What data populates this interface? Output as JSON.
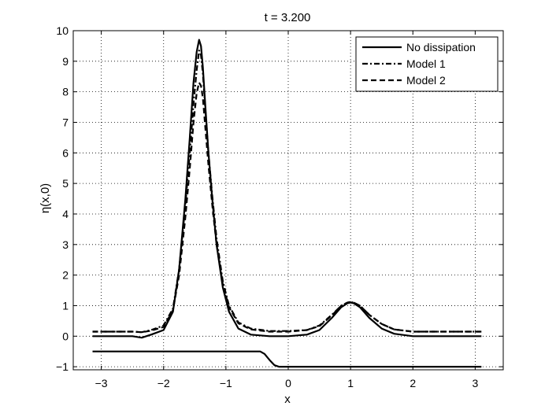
{
  "chart_data": {
    "type": "line",
    "title": "t = 3.200",
    "xlabel": "x",
    "ylabel": "η(x,0)",
    "xlim": [
      -3.45,
      3.45
    ],
    "ylim": [
      -1.1,
      10
    ],
    "xticks": [
      -3,
      -2,
      -1,
      0,
      1,
      2,
      3
    ],
    "xtick_labels": [
      "−3",
      "−2",
      "−1",
      "0",
      "1",
      "2",
      "3"
    ],
    "yticks": [
      -1,
      0,
      1,
      2,
      3,
      4,
      5,
      6,
      7,
      8,
      9,
      10
    ],
    "ytick_labels": [
      "−1",
      "0",
      "1",
      "2",
      "3",
      "4",
      "5",
      "6",
      "7",
      "8",
      "9",
      "10"
    ],
    "grid": true,
    "legend_position": "top-right",
    "series": [
      {
        "name": "No dissipation",
        "style": "solid",
        "x": [
          -3.14,
          -2.8,
          -2.5,
          -2.35,
          -2.2,
          -2.0,
          -1.85,
          -1.75,
          -1.65,
          -1.58,
          -1.52,
          -1.47,
          -1.43,
          -1.4,
          -1.37,
          -1.33,
          -1.28,
          -1.22,
          -1.15,
          -1.05,
          -0.95,
          -0.8,
          -0.6,
          -0.3,
          0.0,
          0.3,
          0.5,
          0.7,
          0.85,
          0.95,
          1.0,
          1.05,
          1.15,
          1.3,
          1.5,
          1.7,
          2.0,
          2.5,
          3.0,
          3.1
        ],
        "y": [
          0.0,
          0.0,
          0.0,
          -0.05,
          0.05,
          0.2,
          0.8,
          2.2,
          4.5,
          6.5,
          8.3,
          9.3,
          9.7,
          9.5,
          8.8,
          7.5,
          6.0,
          4.5,
          3.0,
          1.6,
          0.8,
          0.25,
          0.05,
          0.0,
          0.0,
          0.05,
          0.2,
          0.6,
          0.95,
          1.08,
          1.1,
          1.08,
          0.95,
          0.6,
          0.25,
          0.08,
          0.0,
          0.0,
          0.0,
          0.0
        ]
      },
      {
        "name": "Model 1",
        "style": "dashdot",
        "x": [
          -3.14,
          -2.8,
          -2.5,
          -2.35,
          -2.2,
          -2.0,
          -1.85,
          -1.75,
          -1.65,
          -1.58,
          -1.52,
          -1.47,
          -1.43,
          -1.4,
          -1.37,
          -1.33,
          -1.28,
          -1.22,
          -1.15,
          -1.05,
          -0.95,
          -0.8,
          -0.6,
          -0.3,
          0.0,
          0.3,
          0.5,
          0.7,
          0.85,
          0.95,
          1.0,
          1.05,
          1.15,
          1.3,
          1.5,
          1.7,
          2.0,
          2.5,
          3.0,
          3.1
        ],
        "y": [
          0.15,
          0.15,
          0.15,
          0.13,
          0.2,
          0.35,
          0.9,
          2.2,
          4.3,
          6.0,
          7.6,
          8.7,
          9.35,
          9.2,
          8.6,
          7.4,
          6.0,
          4.6,
          3.2,
          1.8,
          1.0,
          0.45,
          0.25,
          0.17,
          0.17,
          0.2,
          0.35,
          0.7,
          1.0,
          1.1,
          1.12,
          1.1,
          1.0,
          0.7,
          0.4,
          0.22,
          0.15,
          0.15,
          0.15,
          0.15
        ]
      },
      {
        "name": "Model 2",
        "style": "dashed",
        "x": [
          -3.14,
          -2.8,
          -2.5,
          -2.35,
          -2.2,
          -2.0,
          -1.85,
          -1.75,
          -1.65,
          -1.58,
          -1.52,
          -1.47,
          -1.43,
          -1.4,
          -1.37,
          -1.33,
          -1.28,
          -1.22,
          -1.15,
          -1.05,
          -0.95,
          -0.8,
          -0.6,
          -0.3,
          0.0,
          0.3,
          0.5,
          0.7,
          0.85,
          0.95,
          1.0,
          1.05,
          1.15,
          1.3,
          1.5,
          1.7,
          2.0,
          2.5,
          3.0,
          3.1
        ],
        "y": [
          0.15,
          0.15,
          0.15,
          0.13,
          0.18,
          0.3,
          0.85,
          2.0,
          3.9,
          5.5,
          7.0,
          7.95,
          8.3,
          8.2,
          7.8,
          6.8,
          5.6,
          4.3,
          3.0,
          1.7,
          0.95,
          0.42,
          0.22,
          0.15,
          0.15,
          0.2,
          0.33,
          0.68,
          1.0,
          1.1,
          1.12,
          1.1,
          1.0,
          0.7,
          0.4,
          0.22,
          0.15,
          0.15,
          0.15,
          0.15
        ]
      },
      {
        "name": "",
        "style": "solid",
        "x": [
          -3.14,
          -1.0,
          -0.45,
          -0.38,
          -0.3,
          -0.22,
          -0.15,
          0.0,
          1.0,
          2.0,
          3.1
        ],
        "y": [
          -0.5,
          -0.5,
          -0.5,
          -0.58,
          -0.78,
          -0.95,
          -1.0,
          -1.0,
          -1.0,
          -1.0,
          -1.0
        ]
      }
    ]
  }
}
